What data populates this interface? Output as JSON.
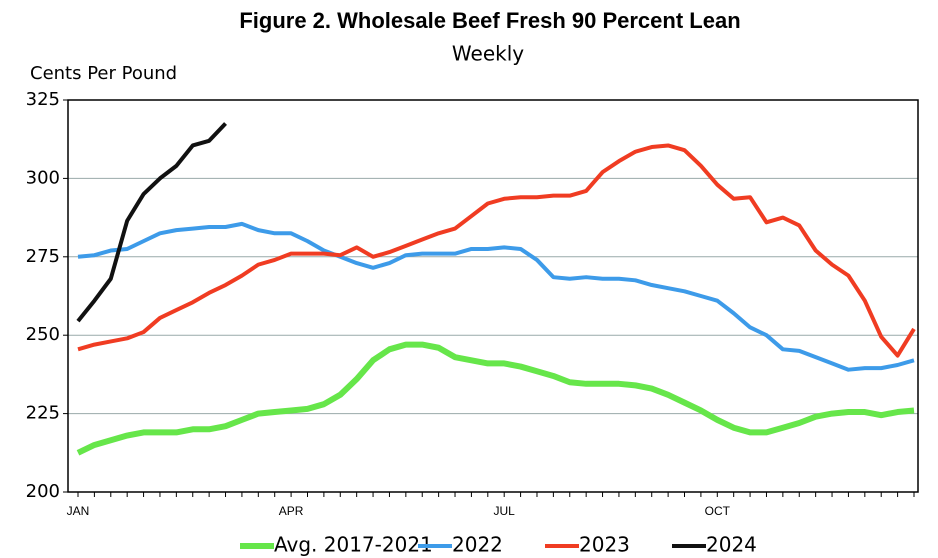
{
  "chart_data": {
    "type": "line",
    "title": "Figure 2. Wholesale Beef Fresh 90 Percent Lean",
    "subtitle": "Weekly",
    "y_label": "Cents Per Pound",
    "categories": [
      "JAN",
      null,
      null,
      null,
      null,
      null,
      null,
      null,
      null,
      null,
      null,
      null,
      null,
      "APR",
      null,
      null,
      null,
      null,
      null,
      null,
      null,
      null,
      null,
      null,
      null,
      null,
      "JUL",
      null,
      null,
      null,
      null,
      null,
      null,
      null,
      null,
      null,
      null,
      null,
      null,
      "OCT",
      null,
      null,
      null,
      null,
      null,
      null,
      null,
      null,
      null,
      null,
      null,
      null
    ],
    "ylim": [
      200,
      325
    ],
    "yticks": [
      200,
      225,
      250,
      275,
      300,
      325
    ],
    "grid": true,
    "series": [
      {
        "name": "Avg. 2017-2021",
        "color": "#66e64a",
        "values": [
          212.5,
          215,
          216.5,
          218,
          219,
          219,
          219,
          220,
          220,
          221,
          223,
          225,
          225.5,
          226,
          226.5,
          228,
          231,
          236,
          242,
          245.5,
          247,
          247,
          246,
          243,
          242,
          241,
          241,
          240,
          238.5,
          237,
          235,
          234.5,
          234.5,
          234.5,
          234,
          233,
          231,
          228.5,
          226,
          223,
          220.5,
          219,
          219,
          220.5,
          222,
          224,
          225,
          225.5,
          225.5,
          224.5,
          225.5,
          226
        ]
      },
      {
        "name": "2022",
        "color": "#3d9be9",
        "values": [
          275,
          275.5,
          277,
          277.5,
          280,
          282.5,
          283.5,
          284,
          284.5,
          284.5,
          285.5,
          283.5,
          282.5,
          282.5,
          280,
          277,
          275,
          273,
          271.5,
          273,
          275.5,
          276,
          276,
          276,
          277.5,
          277.5,
          278,
          277.5,
          274,
          268.5,
          268,
          268.5,
          268,
          268,
          267.5,
          266,
          265,
          264,
          262.5,
          261,
          257,
          252.5,
          250,
          245.5,
          245,
          243,
          241,
          239,
          239.5,
          239.5,
          240.5,
          242
        ]
      },
      {
        "name": "2023",
        "color": "#f03c22",
        "values": [
          245.5,
          247,
          248,
          249,
          251,
          255.5,
          258,
          260.5,
          263.5,
          266,
          269,
          272.5,
          274,
          276,
          276,
          276,
          275.5,
          278,
          275,
          276.5,
          278.5,
          280.5,
          282.5,
          284,
          288,
          292,
          293.5,
          294,
          294,
          294.5,
          294.5,
          296,
          302,
          305.5,
          308.5,
          310,
          310.5,
          309,
          304,
          298,
          293.5,
          294,
          286,
          287.5,
          285,
          277,
          272.5,
          269,
          261,
          249.5,
          243.5,
          252
        ]
      },
      {
        "name": "2024",
        "color": "#111111",
        "values": [
          254.5,
          261,
          268,
          286.5,
          295,
          300,
          304,
          310.5,
          312,
          317.5,
          null,
          null,
          null,
          null,
          null,
          null,
          null,
          null,
          null,
          null,
          null,
          null,
          null,
          null,
          null,
          null,
          null,
          null,
          null,
          null,
          null,
          null,
          null,
          null,
          null,
          null,
          null,
          null,
          null,
          null,
          null,
          null,
          null,
          null,
          null,
          null,
          null,
          null,
          null,
          null,
          null,
          null
        ]
      }
    ]
  }
}
